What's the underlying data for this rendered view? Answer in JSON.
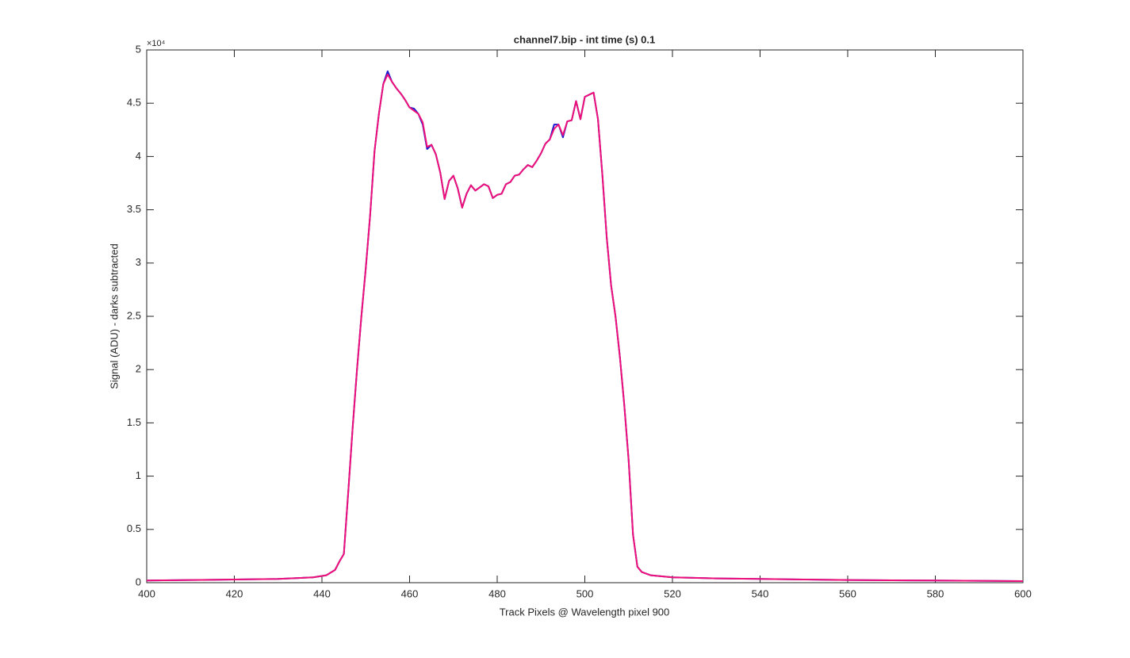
{
  "chart_data": {
    "type": "line",
    "title": "channel7.bip - int time (s) 0.1",
    "x_label": "Track Pixels @ Wavelength pixel 900",
    "y_label": "Signal (ADU) - darks subtracted",
    "y_exponent_label": "×10⁴",
    "x": [
      400,
      410,
      420,
      430,
      438,
      441,
      443,
      444,
      445,
      446,
      447,
      448,
      449,
      450,
      451,
      452,
      453,
      454,
      455,
      456,
      457,
      458,
      459,
      460,
      461,
      462,
      463,
      464,
      465,
      466,
      467,
      468,
      469,
      470,
      471,
      472,
      473,
      474,
      475,
      476,
      477,
      478,
      479,
      480,
      481,
      482,
      483,
      484,
      485,
      486,
      487,
      488,
      489,
      490,
      491,
      492,
      493,
      494,
      495,
      496,
      497,
      498,
      499,
      500,
      501,
      502,
      503,
      504,
      505,
      506,
      507,
      508,
      509,
      510,
      511,
      512,
      513,
      515,
      520,
      530,
      540,
      550,
      560,
      580,
      600
    ],
    "series": [
      {
        "color": "#1a1ad0",
        "values": [
          0.02,
          0.025,
          0.03,
          0.035,
          0.05,
          0.07,
          0.12,
          0.2,
          0.27,
          0.85,
          1.45,
          2.0,
          2.5,
          2.95,
          3.45,
          4.05,
          4.4,
          4.68,
          4.8,
          4.7,
          4.64,
          4.59,
          4.53,
          4.46,
          4.45,
          4.4,
          4.3,
          4.07,
          4.11,
          4.02,
          3.85,
          3.6,
          3.77,
          3.82,
          3.7,
          3.52,
          3.65,
          3.73,
          3.68,
          3.71,
          3.74,
          3.72,
          3.61,
          3.64,
          3.65,
          3.74,
          3.76,
          3.82,
          3.83,
          3.88,
          3.92,
          3.9,
          3.96,
          4.03,
          4.12,
          4.16,
          4.3,
          4.3,
          4.18,
          4.33,
          4.34,
          4.52,
          4.35,
          4.56,
          4.58,
          4.6,
          4.35,
          3.83,
          3.24,
          2.79,
          2.5,
          2.12,
          1.67,
          1.15,
          0.45,
          0.15,
          0.1,
          0.07,
          0.05,
          0.04,
          0.035,
          0.03,
          0.025,
          0.02,
          0.015
        ]
      },
      {
        "color": "#f0107a",
        "values": [
          0.02,
          0.025,
          0.03,
          0.035,
          0.05,
          0.07,
          0.12,
          0.2,
          0.27,
          0.85,
          1.45,
          2.0,
          2.5,
          2.95,
          3.45,
          4.05,
          4.4,
          4.68,
          4.77,
          4.7,
          4.64,
          4.59,
          4.53,
          4.46,
          4.43,
          4.4,
          4.32,
          4.09,
          4.11,
          4.02,
          3.85,
          3.6,
          3.77,
          3.82,
          3.7,
          3.52,
          3.65,
          3.73,
          3.68,
          3.71,
          3.74,
          3.72,
          3.61,
          3.64,
          3.65,
          3.74,
          3.76,
          3.82,
          3.83,
          3.88,
          3.92,
          3.9,
          3.96,
          4.03,
          4.12,
          4.16,
          4.26,
          4.3,
          4.2,
          4.33,
          4.34,
          4.52,
          4.35,
          4.56,
          4.58,
          4.6,
          4.35,
          3.83,
          3.24,
          2.79,
          2.5,
          2.12,
          1.67,
          1.15,
          0.45,
          0.15,
          0.1,
          0.07,
          0.05,
          0.04,
          0.035,
          0.03,
          0.025,
          0.02,
          0.015
        ]
      }
    ],
    "xlim": [
      400,
      600
    ],
    "xticks": [
      400,
      420,
      440,
      460,
      480,
      500,
      520,
      540,
      560,
      580,
      600
    ],
    "ylim": [
      0,
      5
    ],
    "yticks": [
      0,
      0.5,
      1,
      1.5,
      2,
      2.5,
      3,
      3.5,
      4,
      4.5,
      5
    ],
    "grid": false
  }
}
